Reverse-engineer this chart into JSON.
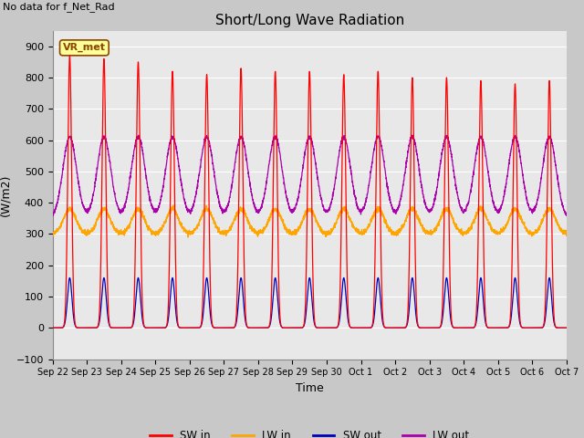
{
  "title": "Short/Long Wave Radiation",
  "xlabel": "Time",
  "ylabel": "(W/m2)",
  "topleft_text": "No data for f_Net_Rad",
  "box_label": "VR_met",
  "ylim": [
    -100,
    950
  ],
  "yticks": [
    -100,
    0,
    100,
    200,
    300,
    400,
    500,
    600,
    700,
    800,
    900
  ],
  "num_days": 15,
  "sw_in_peaks": [
    870,
    860,
    850,
    820,
    810,
    830,
    820,
    820,
    810,
    820,
    800,
    800,
    790,
    780,
    790
  ],
  "lw_in_base": 300,
  "lw_in_peak_add": 80,
  "lw_out_night": 350,
  "lw_out_peak": 610,
  "sw_out_peak": 160,
  "colors": {
    "sw_in": "#FF0000",
    "lw_in": "#FFA500",
    "sw_out": "#0000BB",
    "lw_out": "#AA00AA",
    "figure_bg": "#C8C8C8",
    "axes_bg": "#E8E8E8",
    "grid": "#FFFFFF"
  },
  "xtick_labels": [
    "Sep 22",
    "Sep 23",
    "Sep 24",
    "Sep 25",
    "Sep 26",
    "Sep 27",
    "Sep 28",
    "Sep 29",
    "Sep 30",
    "Oct 1",
    "Oct 2",
    "Oct 3",
    "Oct 4",
    "Oct 5",
    "Oct 6",
    "Oct 7"
  ]
}
